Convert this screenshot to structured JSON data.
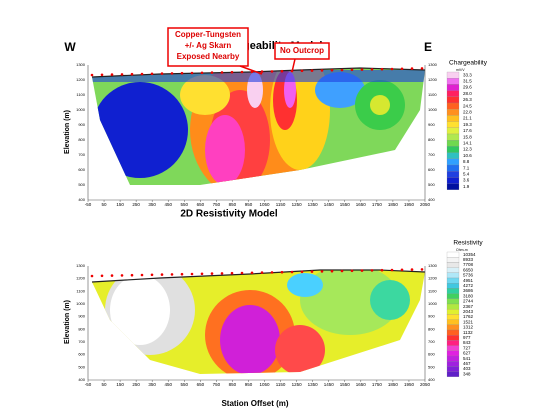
{
  "top": {
    "title": "2D IP Chargeability Model",
    "left_label": "W",
    "right_label": "E",
    "y_label": "Elevation (m)",
    "callouts": [
      {
        "lines": [
          "Copper-Tungsten",
          "+/- Ag Skarn",
          "Exposed Nearby"
        ]
      },
      {
        "lines": [
          "No Outcrop"
        ]
      }
    ],
    "legend_title": "Chargeability",
    "legend_unit": "mV/V",
    "legend_values": [
      "33.3",
      "31.5",
      "29.6",
      "28.0",
      "26.3",
      "24.5",
      "22.8",
      "21.1",
      "19.3",
      "17.6",
      "15.8",
      "14.1",
      "12.3",
      "10.6",
      "8.8",
      "7.1",
      "5.4",
      "3.6",
      "1.9"
    ]
  },
  "bottom": {
    "title": "2D Resistivity Model",
    "y_label": "Elevation (m)",
    "legend_title": "Resistivity",
    "legend_unit": "Ohm-m",
    "legend_values": [
      "10354",
      "8933",
      "7708",
      "6650",
      "5736",
      "4951",
      "4272",
      "3686",
      "3180",
      "2744",
      "2367",
      "2043",
      "1762",
      "1521",
      "1312",
      "1132",
      "977",
      "843",
      "727",
      "627",
      "541",
      "467",
      "403",
      "348"
    ]
  },
  "y_ticks": [
    "1300",
    "1200",
    "1100",
    "1000",
    "900",
    "800",
    "700",
    "600",
    "500",
    "400"
  ],
  "x_axis": {
    "label": "Station Offset (m)",
    "ticks": [
      "-50",
      "50",
      "150",
      "250",
      "350",
      "450",
      "550",
      "650",
      "750",
      "850",
      "950",
      "1050",
      "1150",
      "1250",
      "1350",
      "1450",
      "1550",
      "1650",
      "1750",
      "1850",
      "1950",
      "2050"
    ]
  }
}
